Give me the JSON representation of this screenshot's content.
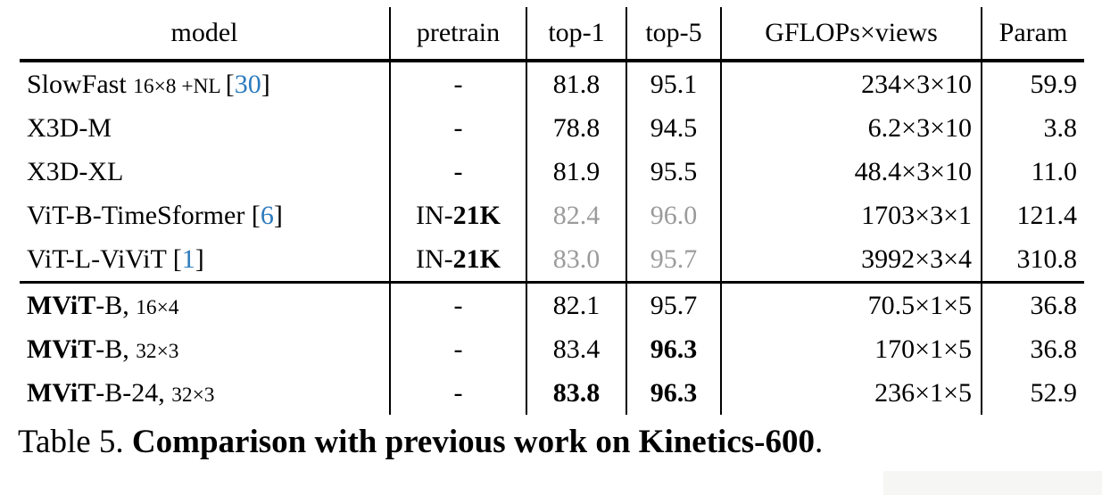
{
  "colors": {
    "citation_blue": "#2c7bbd",
    "muted_gray": "#9b9b9b"
  },
  "table": {
    "headers": {
      "model": "model",
      "pretrain": "pretrain",
      "top1": "top-1",
      "top5": "top-5",
      "gflops": "GFLOPs×views",
      "param": "Param"
    },
    "rows": [
      {
        "model_bold": "",
        "model_main": "SlowFast ",
        "model_small": "16×8 +NL ",
        "cite_l": "[",
        "cite_num": "30",
        "cite_r": "]",
        "pre_main": "-",
        "pre_bold": "",
        "top1": "81.8",
        "top1_class": "",
        "top5": "95.1",
        "top5_class": "",
        "gflops": "234×3×10",
        "param": "59.9"
      },
      {
        "model_bold": "",
        "model_main": "X3D-M",
        "model_small": "",
        "cite_l": "",
        "cite_num": "",
        "cite_r": "",
        "pre_main": "-",
        "pre_bold": "",
        "top1": "78.8",
        "top1_class": "",
        "top5": "94.5",
        "top5_class": "",
        "gflops": "6.2×3×10",
        "param": "3.8"
      },
      {
        "model_bold": "",
        "model_main": "X3D-XL",
        "model_small": "",
        "cite_l": "",
        "cite_num": "",
        "cite_r": "",
        "pre_main": "-",
        "pre_bold": "",
        "top1": "81.9",
        "top1_class": "",
        "top5": "95.5",
        "top5_class": "",
        "gflops": "48.4×3×10",
        "param": "11.0"
      },
      {
        "model_bold": "",
        "model_main": "ViT-B-TimeSformer ",
        "model_small": "",
        "cite_l": "[",
        "cite_num": "6",
        "cite_r": "]",
        "pre_main": "IN-",
        "pre_bold": "21K",
        "top1": "82.4",
        "top1_class": "gray",
        "top5": "96.0",
        "top5_class": "gray",
        "gflops": "1703×3×1",
        "param": "121.4"
      },
      {
        "model_bold": "",
        "model_main": "ViT-L-ViViT ",
        "model_small": "",
        "cite_l": "[",
        "cite_num": "1",
        "cite_r": "]",
        "pre_main": "IN-",
        "pre_bold": "21K",
        "top1": "83.0",
        "top1_class": "gray",
        "top5": "95.7",
        "top5_class": "gray",
        "gflops": "3992×3×4",
        "param": "310.8"
      },
      {
        "model_bold": "MViT",
        "model_main": "-B, ",
        "model_small": "16×4",
        "cite_l": "",
        "cite_num": "",
        "cite_r": "",
        "pre_main": "-",
        "pre_bold": "",
        "top1": "82.1",
        "top1_class": "",
        "top5": "95.7",
        "top5_class": "",
        "gflops": "70.5×1×5",
        "param": "36.8"
      },
      {
        "model_bold": "MViT",
        "model_main": "-B, ",
        "model_small": "32×3",
        "cite_l": "",
        "cite_num": "",
        "cite_r": "",
        "pre_main": "-",
        "pre_bold": "",
        "top1": "83.4",
        "top1_class": "",
        "top5": "96.3",
        "top5_class": "bold",
        "gflops": "170×1×5",
        "param": "36.8"
      },
      {
        "model_bold": "MViT",
        "model_main": "-B-24, ",
        "model_small": "32×3",
        "cite_l": "",
        "cite_num": "",
        "cite_r": "",
        "pre_main": "-",
        "pre_bold": "",
        "top1": "83.8",
        "top1_class": "bold",
        "top5": "96.3",
        "top5_class": "bold",
        "gflops": "236×1×5",
        "param": "52.9"
      }
    ]
  },
  "caption": {
    "label": "Table 5. ",
    "bold_text": "Comparison with previous work on Kinetics-600",
    "suffix": "."
  }
}
